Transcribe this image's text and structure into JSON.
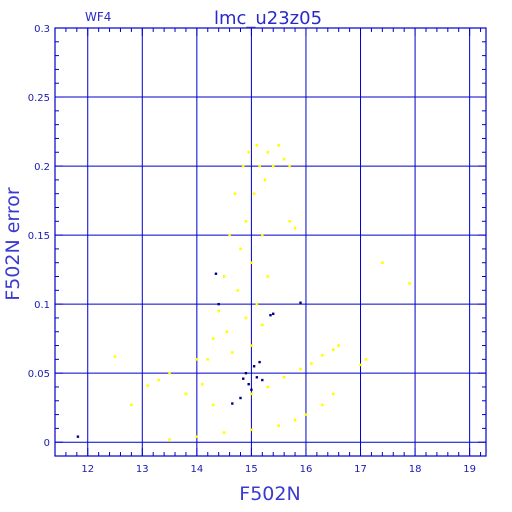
{
  "chart_data": {
    "type": "scatter",
    "title": "lmc_u23z05",
    "panel_label": "WF4",
    "xlabel": "F502N",
    "ylabel": "F502N error",
    "xlim": [
      11.4,
      19.3
    ],
    "ylim": [
      -0.01,
      0.3
    ],
    "x_ticks": [
      "12",
      "13",
      "14",
      "15",
      "16",
      "17",
      "18",
      "19"
    ],
    "y_ticks": [
      "0",
      "0.05",
      "0.1",
      "0.15",
      "0.2",
      "0.25",
      "0.3"
    ],
    "grid": true,
    "colors": {
      "axes": "#0000cc",
      "grid": "#0000cc",
      "series_main": "#ffff00",
      "series_flagged": "#000080"
    },
    "series": [
      {
        "role": "main-clump",
        "color": "#ffff00",
        "points": [
          [
            14.4,
            0.095
          ],
          [
            14.5,
            0.12
          ],
          [
            14.55,
            0.08
          ],
          [
            14.6,
            0.15
          ],
          [
            14.65,
            0.065
          ],
          [
            14.7,
            0.18
          ],
          [
            14.75,
            0.11
          ],
          [
            14.8,
            0.14
          ],
          [
            14.85,
            0.2
          ],
          [
            14.9,
            0.09
          ],
          [
            14.9,
            0.16
          ],
          [
            14.95,
            0.21
          ],
          [
            15.0,
            0.13
          ],
          [
            15.0,
            0.07
          ],
          [
            15.05,
            0.18
          ],
          [
            15.1,
            0.215
          ],
          [
            15.1,
            0.1
          ],
          [
            15.15,
            0.2
          ],
          [
            15.2,
            0.15
          ],
          [
            15.2,
            0.085
          ],
          [
            15.25,
            0.19
          ],
          [
            15.3,
            0.21
          ],
          [
            15.3,
            0.12
          ],
          [
            15.4,
            0.2
          ],
          [
            15.5,
            0.215
          ],
          [
            15.6,
            0.205
          ],
          [
            15.7,
            0.2
          ],
          [
            14.3,
            0.075
          ],
          [
            14.2,
            0.06
          ],
          [
            14.0,
            0.06
          ]
        ]
      },
      {
        "role": "upper-sequence",
        "color": "#ffff00",
        "points": [
          [
            15.0,
            0.035
          ],
          [
            15.3,
            0.04
          ],
          [
            15.6,
            0.047
          ],
          [
            15.9,
            0.053
          ],
          [
            16.1,
            0.057
          ],
          [
            16.3,
            0.063
          ],
          [
            16.5,
            0.067
          ],
          [
            16.6,
            0.07
          ]
        ]
      },
      {
        "role": "lower-sequence",
        "color": "#ffff00",
        "points": [
          [
            13.5,
            0.002
          ],
          [
            14.0,
            0.004
          ],
          [
            14.5,
            0.007
          ],
          [
            15.0,
            0.009
          ],
          [
            15.5,
            0.012
          ],
          [
            15.8,
            0.016
          ],
          [
            16.0,
            0.02
          ],
          [
            16.3,
            0.027
          ],
          [
            16.5,
            0.035
          ]
        ]
      },
      {
        "role": "scattered-outliers",
        "color": "#ffff00",
        "points": [
          [
            12.5,
            0.062
          ],
          [
            12.8,
            0.027
          ],
          [
            13.1,
            0.041
          ],
          [
            13.3,
            0.045
          ],
          [
            13.5,
            0.05
          ],
          [
            13.8,
            0.035
          ],
          [
            14.1,
            0.042
          ],
          [
            14.3,
            0.027
          ],
          [
            15.7,
            0.16
          ],
          [
            15.8,
            0.155
          ],
          [
            17.0,
            0.056
          ],
          [
            17.1,
            0.06
          ],
          [
            17.4,
            0.13
          ],
          [
            17.9,
            0.115
          ]
        ]
      },
      {
        "role": "flagged-points",
        "color": "#000080",
        "points": [
          [
            11.82,
            0.004
          ],
          [
            14.35,
            0.122
          ],
          [
            14.4,
            0.1
          ],
          [
            14.65,
            0.028
          ],
          [
            14.8,
            0.032
          ],
          [
            14.85,
            0.046
          ],
          [
            14.9,
            0.05
          ],
          [
            14.95,
            0.042
          ],
          [
            15.0,
            0.038
          ],
          [
            15.05,
            0.055
          ],
          [
            15.1,
            0.047
          ],
          [
            15.15,
            0.058
          ],
          [
            15.2,
            0.045
          ],
          [
            15.35,
            0.092
          ],
          [
            15.4,
            0.093
          ],
          [
            15.9,
            0.101
          ]
        ]
      }
    ]
  }
}
